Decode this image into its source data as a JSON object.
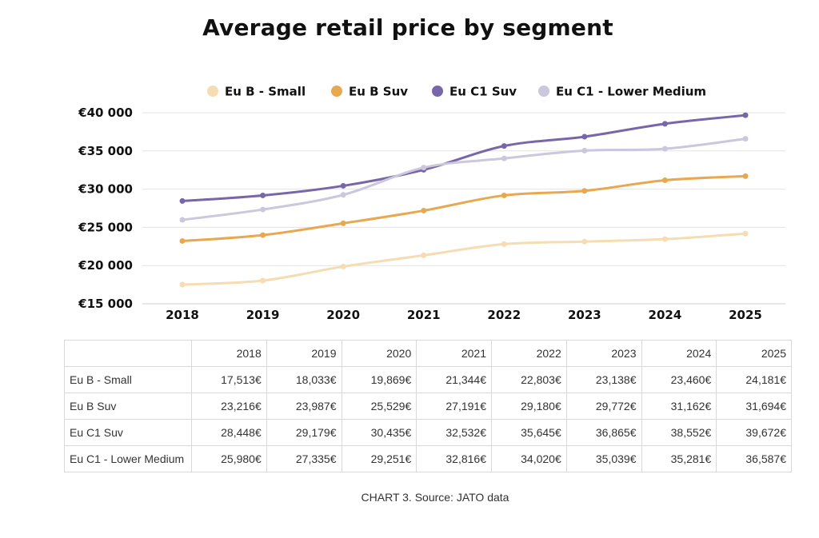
{
  "chart_data": {
    "type": "line",
    "title": "Average retail price by segment",
    "x": [
      "2018",
      "2019",
      "2020",
      "2021",
      "2022",
      "2023",
      "2024",
      "2025"
    ],
    "yticks": [
      "€40 000",
      "€35 000",
      "€30 000",
      "€25 000",
      "€20 000",
      "€15 000"
    ],
    "ylim": [
      15000,
      40000
    ],
    "grid": true,
    "legend_position": "top",
    "series": [
      {
        "name": "Eu B - Small",
        "color": "#f6dcb2",
        "values": [
          17513,
          18033,
          19869,
          21344,
          22803,
          23138,
          23460,
          24181
        ]
      },
      {
        "name": "Eu B Suv",
        "color": "#e8a84f",
        "values": [
          23216,
          23987,
          25529,
          27191,
          29180,
          29772,
          31162,
          31694
        ]
      },
      {
        "name": "Eu C1 Suv",
        "color": "#7767a8",
        "values": [
          28448,
          29179,
          30435,
          32532,
          35645,
          36865,
          38552,
          39672
        ]
      },
      {
        "name": "Eu C1 - Lower Medium",
        "color": "#cbc7dd",
        "values": [
          25980,
          27335,
          29251,
          32816,
          34020,
          35039,
          35281,
          36587
        ]
      }
    ]
  },
  "table": {
    "headers": [
      "",
      "2018",
      "2019",
      "2020",
      "2021",
      "2022",
      "2023",
      "2024",
      "2025"
    ],
    "rows": [
      {
        "name": "Eu B - Small",
        "cells": [
          "17,513€",
          "18,033€",
          "19,869€",
          "21,344€",
          "22,803€",
          "23,138€",
          "23,460€",
          "24,181€"
        ]
      },
      {
        "name": "Eu B Suv",
        "cells": [
          "23,216€",
          "23,987€",
          "25,529€",
          "27,191€",
          "29,180€",
          "29,772€",
          "31,162€",
          "31,694€"
        ]
      },
      {
        "name": "Eu C1 Suv",
        "cells": [
          "28,448€",
          "29,179€",
          "30,435€",
          "32,532€",
          "35,645€",
          "36,865€",
          "38,552€",
          "39,672€"
        ]
      },
      {
        "name": "Eu C1 - Lower Medium",
        "cells": [
          "25,980€",
          "27,335€",
          "29,251€",
          "32,816€",
          "34,020€",
          "35,039€",
          "35,281€",
          "36,587€"
        ]
      }
    ]
  },
  "caption": "CHART 3. Source: JATO data"
}
